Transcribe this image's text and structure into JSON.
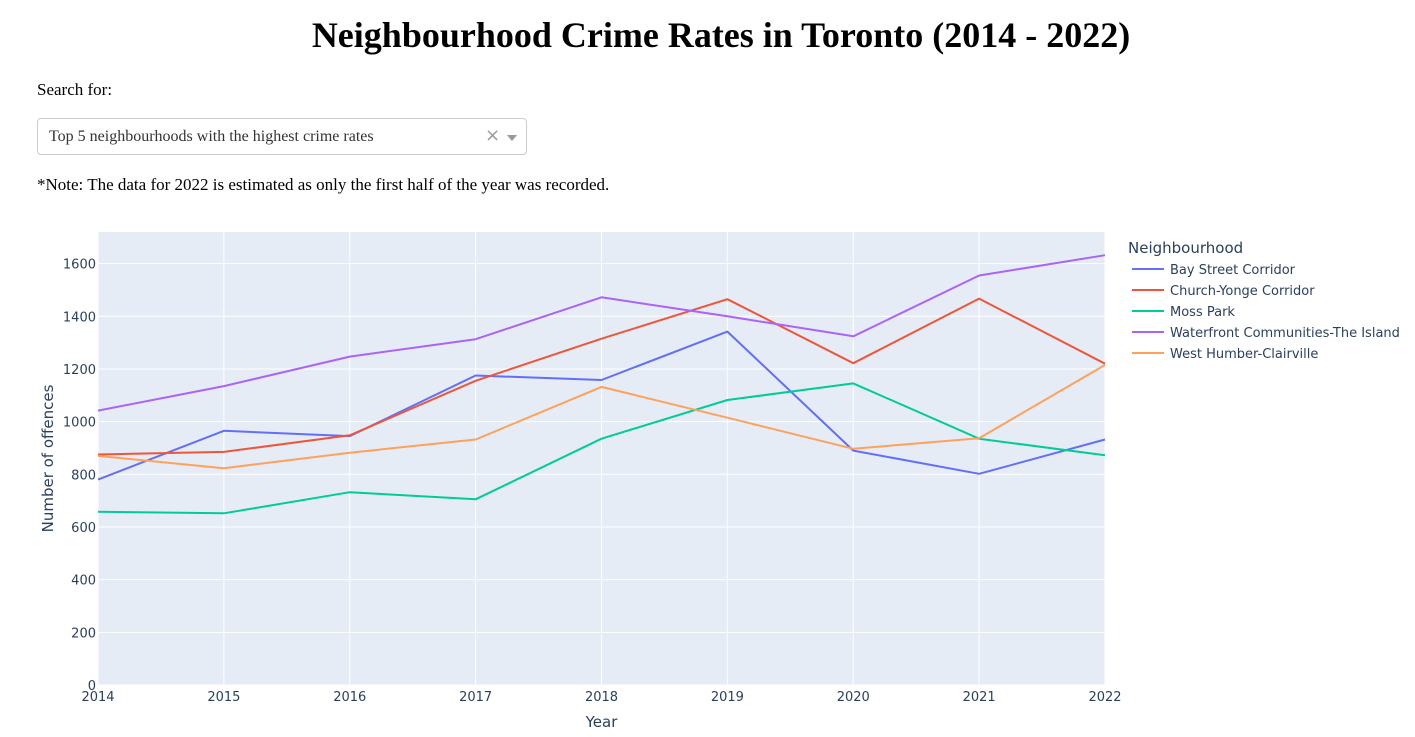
{
  "page": {
    "title": "Neighbourhood Crime Rates in Toronto (2014 - 2022)",
    "search_label": "Search for:",
    "dropdown": {
      "selected": "Top 5 neighbourhoods with the highest crime rates",
      "clear_symbol": "×"
    },
    "note": "*Note: The data for 2022 is estimated as only the first half of the year was recorded."
  },
  "chart_data": {
    "type": "line",
    "xlabel": "Year",
    "ylabel": "Number of offences",
    "xlim": [
      2014,
      2022
    ],
    "ylim": [
      0,
      1720
    ],
    "x": [
      2014,
      2015,
      2016,
      2017,
      2018,
      2019,
      2020,
      2021,
      2022
    ],
    "x_ticks": [
      "2014",
      "2015",
      "2016",
      "2017",
      "2018",
      "2019",
      "2020",
      "2021",
      "2022"
    ],
    "y_ticks": [
      0,
      200,
      400,
      600,
      800,
      1000,
      1200,
      1400,
      1600
    ],
    "grid": true,
    "plot_background": "#e5ecf6",
    "legend": {
      "title": "Neighbourhood",
      "position": "right"
    },
    "series": [
      {
        "name": "Bay Street Corridor",
        "color": "#636efa",
        "values": [
          780,
          965,
          945,
          1175,
          1158,
          1342,
          890,
          802,
          932
        ]
      },
      {
        "name": "Church-Yonge Corridor",
        "color": "#ef553b",
        "values": [
          875,
          885,
          948,
          1155,
          1315,
          1465,
          1222,
          1467,
          1220
        ]
      },
      {
        "name": "Moss Park",
        "color": "#00cc96",
        "values": [
          658,
          652,
          732,
          705,
          935,
          1082,
          1145,
          935,
          872
        ]
      },
      {
        "name": "Waterfront Communities-The Island",
        "color": "#ab63fa",
        "values": [
          1042,
          1135,
          1247,
          1313,
          1472,
          1400,
          1324,
          1555,
          1632
        ]
      },
      {
        "name": "West Humber-Clairville",
        "color": "#ffa15a",
        "values": [
          870,
          823,
          882,
          932,
          1132,
          1015,
          897,
          937,
          1215
        ]
      }
    ]
  }
}
